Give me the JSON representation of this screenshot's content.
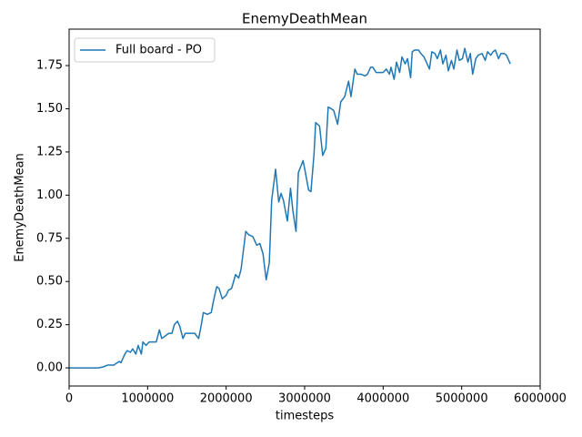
{
  "chart_data": {
    "type": "line",
    "title": "EnemyDeathMean",
    "x_label": "timesteps",
    "y_label": "EnemyDeathMean",
    "legend": "upper left",
    "grid": false,
    "xlim": [
      0,
      6000000
    ],
    "xticks": [
      0,
      1000000,
      2000000,
      3000000,
      4000000,
      5000000,
      6000000
    ],
    "ylim": [
      -0.105,
      1.961
    ],
    "yticks": [
      {
        "value": 0,
        "label": "0.00"
      },
      {
        "value": 0.25,
        "label": "0.25"
      },
      {
        "value": 0.5,
        "label": "0.50"
      },
      {
        "value": 0.75,
        "label": "0.75"
      },
      {
        "value": 1,
        "label": "1.00"
      },
      {
        "value": 1.25,
        "label": "1.25"
      },
      {
        "value": 1.5,
        "label": "1.50"
      },
      {
        "value": 1.75,
        "label": "1.75"
      }
    ],
    "x": [
      0,
      370000,
      430000,
      490000,
      570000,
      600000,
      640000,
      660000,
      710000,
      740000,
      780000,
      810000,
      850000,
      880000,
      920000,
      940000,
      980000,
      1020000,
      1070000,
      1110000,
      1150000,
      1180000,
      1240000,
      1270000,
      1310000,
      1340000,
      1380000,
      1410000,
      1450000,
      1480000,
      1540000,
      1600000,
      1650000,
      1680000,
      1710000,
      1760000,
      1810000,
      1840000,
      1880000,
      1910000,
      1950000,
      2000000,
      2030000,
      2070000,
      2120000,
      2160000,
      2190000,
      2250000,
      2290000,
      2340000,
      2390000,
      2430000,
      2470000,
      2510000,
      2550000,
      2580000,
      2630000,
      2670000,
      2700000,
      2730000,
      2780000,
      2820000,
      2850000,
      2890000,
      2920000,
      2980000,
      3010000,
      3050000,
      3080000,
      3120000,
      3140000,
      3190000,
      3230000,
      3270000,
      3300000,
      3340000,
      3370000,
      3420000,
      3460000,
      3510000,
      3560000,
      3590000,
      3640000,
      3670000,
      3720000,
      3770000,
      3800000,
      3840000,
      3870000,
      3910000,
      3950000,
      4000000,
      4040000,
      4080000,
      4100000,
      4140000,
      4170000,
      4210000,
      4240000,
      4280000,
      4310000,
      4350000,
      4370000,
      4400000,
      4450000,
      4480000,
      4520000,
      4550000,
      4590000,
      4620000,
      4660000,
      4690000,
      4730000,
      4760000,
      4800000,
      4830000,
      4870000,
      4900000,
      4940000,
      4970000,
      5010000,
      5040000,
      5080000,
      5110000,
      5140000,
      5180000,
      5210000,
      5260000,
      5300000,
      5330000,
      5370000,
      5400000,
      5430000,
      5470000,
      5500000,
      5540000,
      5570000,
      5620000
    ],
    "series": [
      {
        "name": "Full board - PO",
        "color": "#1f77b4",
        "values": [
          0,
          0,
          0.005,
          0.016,
          0.016,
          0.026,
          0.037,
          0.03,
          0.08,
          0.1,
          0.09,
          0.11,
          0.08,
          0.13,
          0.08,
          0.15,
          0.13,
          0.15,
          0.15,
          0.15,
          0.22,
          0.17,
          0.19,
          0.2,
          0.2,
          0.25,
          0.27,
          0.24,
          0.17,
          0.2,
          0.2,
          0.2,
          0.17,
          0.24,
          0.32,
          0.31,
          0.32,
          0.39,
          0.47,
          0.46,
          0.4,
          0.42,
          0.45,
          0.46,
          0.54,
          0.52,
          0.57,
          0.79,
          0.77,
          0.76,
          0.71,
          0.72,
          0.66,
          0.51,
          0.61,
          0.97,
          1.15,
          0.96,
          1.01,
          0.97,
          0.85,
          1.04,
          0.91,
          0.79,
          1.13,
          1.2,
          1.13,
          1.03,
          1.02,
          1.24,
          1.42,
          1.4,
          1.23,
          1.27,
          1.51,
          1.5,
          1.49,
          1.41,
          1.54,
          1.57,
          1.66,
          1.57,
          1.73,
          1.7,
          1.7,
          1.69,
          1.7,
          1.74,
          1.74,
          1.71,
          1.71,
          1.71,
          1.73,
          1.7,
          1.74,
          1.67,
          1.77,
          1.71,
          1.8,
          1.76,
          1.79,
          1.68,
          1.83,
          1.84,
          1.84,
          1.82,
          1.8,
          1.77,
          1.73,
          1.83,
          1.82,
          1.79,
          1.84,
          1.76,
          1.81,
          1.72,
          1.78,
          1.73,
          1.84,
          1.78,
          1.79,
          1.85,
          1.77,
          1.82,
          1.7,
          1.79,
          1.81,
          1.82,
          1.78,
          1.83,
          1.81,
          1.83,
          1.84,
          1.79,
          1.82,
          1.82,
          1.81,
          1.76
        ]
      }
    ]
  }
}
